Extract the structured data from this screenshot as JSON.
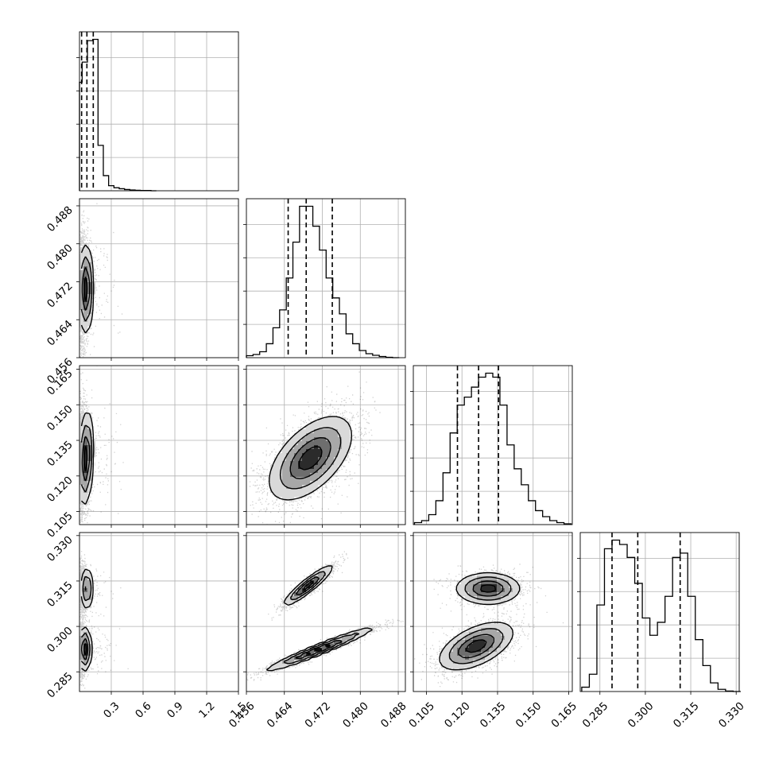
{
  "chart_data": {
    "type": "corner",
    "grid": true,
    "parameters": [
      {
        "range": [
          0.0,
          1.5
        ],
        "ticks": [
          "0.3",
          "0.6",
          "0.9",
          "1.2",
          "1.5"
        ],
        "tick_values": [
          0.3,
          0.6,
          0.9,
          1.2,
          1.5
        ],
        "quantiles": [
          0.02,
          0.07,
          0.13
        ],
        "histogram": {
          "bin_edges": [
            0.0,
            0.025,
            0.075,
            0.125,
            0.175,
            0.225,
            0.275,
            0.325,
            0.375,
            0.425,
            0.475,
            0.525,
            0.575,
            0.625,
            0.675,
            0.725
          ],
          "counts": [
            430,
            510,
            595,
            600,
            180,
            60,
            20,
            12,
            8,
            5,
            3,
            2,
            1,
            1,
            0
          ]
        }
      },
      {
        "range": [
          0.456,
          0.4895
        ],
        "ticks": [
          "0.456",
          "0.464",
          "0.472",
          "0.480",
          "0.488"
        ],
        "tick_values": [
          0.456,
          0.464,
          0.472,
          0.48,
          0.488
        ],
        "quantiles": [
          0.4648,
          0.4686,
          0.4741
        ],
        "histogram": {
          "bin_edges": [
            0.456,
            0.4574,
            0.4588,
            0.4602,
            0.4616,
            0.463,
            0.4644,
            0.4658,
            0.4672,
            0.4686,
            0.47,
            0.4714,
            0.4728,
            0.4742,
            0.4756,
            0.477,
            0.4784,
            0.4798,
            0.4812,
            0.4826,
            0.484,
            0.4854,
            0.4868,
            0.4882
          ],
          "counts": [
            5,
            8,
            15,
            35,
            75,
            120,
            200,
            290,
            380,
            380,
            330,
            270,
            200,
            150,
            110,
            60,
            35,
            18,
            10,
            6,
            3,
            1,
            0
          ]
        }
      },
      {
        "range": [
          0.0995,
          0.1665
        ],
        "ticks": [
          "0.105",
          "0.120",
          "0.135",
          "0.150",
          "0.165"
        ],
        "tick_values": [
          0.105,
          0.12,
          0.135,
          0.15,
          0.165
        ],
        "quantiles": [
          0.1181,
          0.127,
          0.1354
        ],
        "histogram": {
          "bin_edges": [
            0.1,
            0.103,
            0.106,
            0.109,
            0.112,
            0.115,
            0.118,
            0.121,
            0.124,
            0.127,
            0.13,
            0.133,
            0.136,
            0.139,
            0.142,
            0.145,
            0.148,
            0.151,
            0.154,
            0.157,
            0.16,
            0.163,
            0.166
          ],
          "counts": [
            5,
            10,
            25,
            60,
            130,
            230,
            300,
            320,
            345,
            370,
            380,
            370,
            300,
            200,
            140,
            100,
            60,
            35,
            20,
            10,
            5,
            2
          ]
        }
      },
      {
        "range": [
          0.2785,
          0.331
        ],
        "ticks": [
          "0.285",
          "0.300",
          "0.315",
          "0.330"
        ],
        "tick_values": [
          0.285,
          0.3,
          0.315,
          0.33
        ],
        "quantiles": [
          0.289,
          0.2975,
          0.3115
        ],
        "histogram": {
          "bin_edges": [
            0.279,
            0.2815,
            0.284,
            0.2865,
            0.289,
            0.2915,
            0.294,
            0.2965,
            0.299,
            0.3015,
            0.304,
            0.3065,
            0.309,
            0.3115,
            0.314,
            0.3165,
            0.319,
            0.3215,
            0.324,
            0.3265,
            0.329,
            0.3315
          ],
          "counts": [
            10,
            40,
            200,
            330,
            350,
            340,
            310,
            250,
            170,
            130,
            160,
            220,
            310,
            320,
            220,
            120,
            60,
            20,
            5,
            1,
            0
          ]
        }
      }
    ],
    "pairs": [
      {
        "row": 1,
        "col": 0,
        "modes": [
          {
            "x": 0.06,
            "y": 0.4705,
            "sx": 0.035,
            "sy": 0.0045,
            "rho": 0.0
          }
        ]
      },
      {
        "row": 2,
        "col": 0,
        "modes": [
          {
            "x": 0.06,
            "y": 0.1275,
            "sx": 0.035,
            "sy": 0.0095,
            "rho": 0.2
          }
        ]
      },
      {
        "row": 3,
        "col": 0,
        "modes": [
          {
            "x": 0.05,
            "y": 0.2925,
            "sx": 0.03,
            "sy": 0.0035,
            "rho": 0.0,
            "w": 0.6
          },
          {
            "x": 0.07,
            "y": 0.3125,
            "sx": 0.03,
            "sy": 0.0035,
            "rho": 0.0,
            "w": 0.4
          }
        ]
      },
      {
        "row": 2,
        "col": 1,
        "modes": [
          {
            "x": 0.4695,
            "y": 0.1275,
            "sx": 0.0042,
            "sy": 0.0085,
            "rho": 0.55
          }
        ]
      },
      {
        "row": 3,
        "col": 1,
        "modes": [
          {
            "x": 0.4715,
            "y": 0.2925,
            "sx": 0.0055,
            "sy": 0.0035,
            "rho": 0.97,
            "w": 0.6
          },
          {
            "x": 0.469,
            "y": 0.3135,
            "sx": 0.0025,
            "sy": 0.0032,
            "rho": 0.92,
            "w": 0.4
          }
        ]
      },
      {
        "row": 3,
        "col": 2,
        "modes": [
          {
            "x": 0.126,
            "y": 0.2935,
            "sx": 0.0075,
            "sy": 0.0038,
            "rho": 0.55,
            "w": 0.6
          },
          {
            "x": 0.131,
            "y": 0.3125,
            "sx": 0.0065,
            "sy": 0.0025,
            "rho": 0.0,
            "w": 0.4
          }
        ]
      }
    ]
  }
}
